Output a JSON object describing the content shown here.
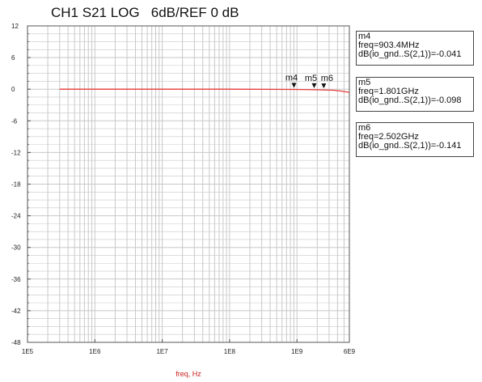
{
  "header": {
    "text": "CH1 S21 LOG   6dB/REF 0 dB"
  },
  "colors": {
    "trace": "#e83a3a",
    "grid": "#c8c8c8",
    "axis": "#555555",
    "xlabel": "#cc2222"
  },
  "chart_data": {
    "type": "line",
    "xscale": "log",
    "xlabel": "freq, Hz",
    "xlim": [
      100000,
      6000000000
    ],
    "ylim": [
      -48,
      12
    ],
    "grid": true,
    "yticks": [
      12,
      6,
      0,
      -6,
      -12,
      -18,
      -24,
      -30,
      -36,
      -42,
      -48
    ],
    "ytick_labels": [
      "12",
      "6",
      "0",
      "-6",
      "-12",
      "-18",
      "-24",
      "-30",
      "-36",
      "-42",
      "-48"
    ],
    "xticks": [
      100000,
      1000000,
      10000000,
      100000000,
      1000000000,
      6000000000
    ],
    "xtick_labels": [
      "1E5",
      "1E6",
      "1E7",
      "1E8",
      "1E9",
      "6E9"
    ],
    "series": [
      {
        "x": [
          300000,
          1000000,
          10000000,
          100000000,
          903400000,
          1801000000,
          2502000000,
          3500000000,
          4500000000,
          6000000000
        ],
        "y": [
          0,
          0,
          0,
          0,
          -0.041,
          -0.098,
          -0.141,
          -0.2,
          -0.35,
          -0.6
        ]
      }
    ],
    "markers": [
      {
        "name": "m4",
        "freq": 903400000,
        "value": -0.041
      },
      {
        "name": "m5",
        "freq": 1801000000,
        "value": -0.098
      },
      {
        "name": "m6",
        "freq": 2502000000,
        "value": -0.141
      }
    ]
  },
  "marker_boxes": [
    {
      "name": "m4",
      "freq_text": "freq=903.4MHz",
      "value_text": "dB(io_gnd..S(2,1))=-0.041"
    },
    {
      "name": "m5",
      "freq_text": "freq=1.801GHz",
      "value_text": "dB(io_gnd..S(2,1))=-0.098"
    },
    {
      "name": "m6",
      "freq_text": "freq=2.502GHz",
      "value_text": "dB(io_gnd..S(2,1))=-0.141"
    }
  ]
}
